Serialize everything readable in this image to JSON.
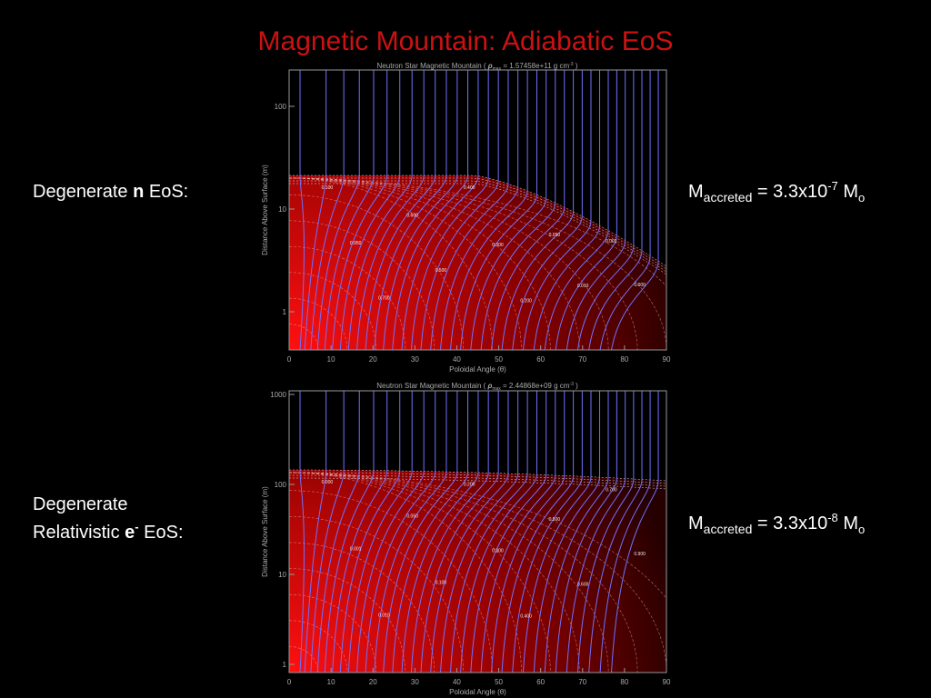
{
  "title": "Magnetic Mountain: Adiabatic EoS",
  "panels": [
    {
      "label": {
        "lines": [
          [
            "Degenerate ",
            "n",
            " EoS:"
          ]
        ]
      },
      "mass": [
        "M",
        "accreted",
        " = 3.3x10",
        "-7",
        " M",
        "o"
      ],
      "plot": {
        "title": [
          "Neutron Star Magnetic Mountain ( ",
          "ρ",
          "max",
          " =  1.57458e+11 g cm",
          "-3",
          " )"
        ],
        "xlabel": "Poloidal Angle (θ)",
        "ylabel": "Distance Above Surface (m)",
        "xticks": [
          0,
          10,
          20,
          30,
          40,
          50,
          60,
          70,
          80,
          90
        ],
        "yticks": [
          1,
          10,
          100
        ],
        "contour_labels": [
          "0.100",
          "0.950",
          "0.700",
          "0.600",
          "0.500",
          "0.400",
          "0.300",
          "0.200",
          "0.050",
          "0.010",
          "0.001",
          "0.000"
        ]
      }
    },
    {
      "label": {
        "lines": [
          [
            "Degenerate"
          ],
          [
            "Relativistic ",
            "e",
            "-",
            " EoS:"
          ]
        ]
      },
      "mass": [
        "M",
        "accreted",
        " = 3.3x10",
        "-8",
        " M",
        "o"
      ],
      "plot": {
        "title": [
          "Neutron Star Magnetic Mountain ( ",
          "ρ",
          "max",
          " =  2.44868e+09 g cm",
          "-3",
          " )"
        ],
        "xlabel": "Poloidal Angle (θ)",
        "ylabel": "Distance Above Surface (m)",
        "xticks": [
          0,
          10,
          20,
          30,
          40,
          50,
          60,
          70,
          80,
          90
        ],
        "yticks": [
          1,
          10,
          100,
          1000
        ],
        "contour_labels": [
          "0.000",
          "0.001",
          "0.010",
          "0.050",
          "0.100",
          "0.200",
          "0.300",
          "0.400",
          "0.500",
          "0.600",
          "0.700",
          "0.900"
        ]
      }
    }
  ]
}
